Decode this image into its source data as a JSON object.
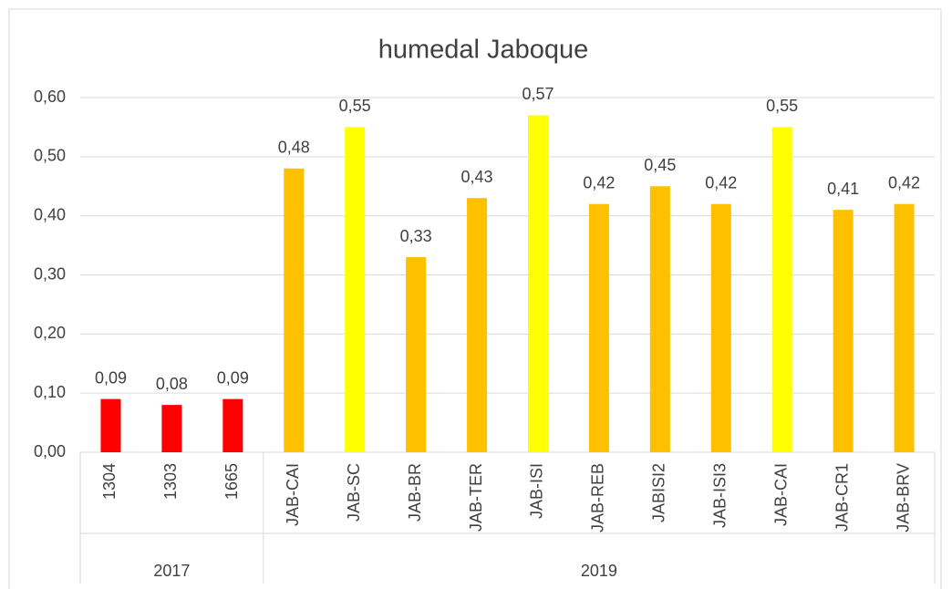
{
  "chart_data": {
    "type": "bar",
    "title": "humedal Jaboque",
    "groups": [
      {
        "name": "2017",
        "categories": [
          "1304",
          "1303",
          "1665"
        ],
        "values": [
          0.09,
          0.08,
          0.09
        ],
        "value_labels": [
          "0,09",
          "0,08",
          "0,09"
        ],
        "colors": [
          "#ff0000",
          "#ff0000",
          "#ff0000"
        ]
      },
      {
        "name": "2019",
        "categories": [
          "JAB-CAI",
          "JAB-SC",
          "JAB-BR",
          "JAB-TER",
          "JAB-ISI",
          "JAB-REB",
          "JABISI2",
          "JAB-ISI3",
          "JAB-CAI",
          "JAB-CR1",
          "JAB-BRV"
        ],
        "values": [
          0.48,
          0.55,
          0.33,
          0.43,
          0.57,
          0.42,
          0.45,
          0.42,
          0.55,
          0.41,
          0.42
        ],
        "value_labels": [
          "0,48",
          "0,55",
          "0,33",
          "0,43",
          "0,57",
          "0,42",
          "0,45",
          "0,42",
          "0,55",
          "0,41",
          "0,42"
        ],
        "colors": [
          "#ffc000",
          "#ffff00",
          "#ffc000",
          "#ffc000",
          "#ffff00",
          "#ffc000",
          "#ffc000",
          "#ffc000",
          "#ffff00",
          "#ffc000",
          "#ffc000"
        ]
      }
    ],
    "ylim": [
      0,
      0.6
    ],
    "yticks": [
      {
        "value": 0,
        "label": "0,00"
      },
      {
        "value": 0.1,
        "label": "0,10"
      },
      {
        "value": 0.2,
        "label": "0,20"
      },
      {
        "value": 0.3,
        "label": "0,30"
      },
      {
        "value": 0.4,
        "label": "0,40"
      },
      {
        "value": 0.5,
        "label": "0,50"
      },
      {
        "value": 0.6,
        "label": "0,60"
      }
    ],
    "grid": true
  }
}
